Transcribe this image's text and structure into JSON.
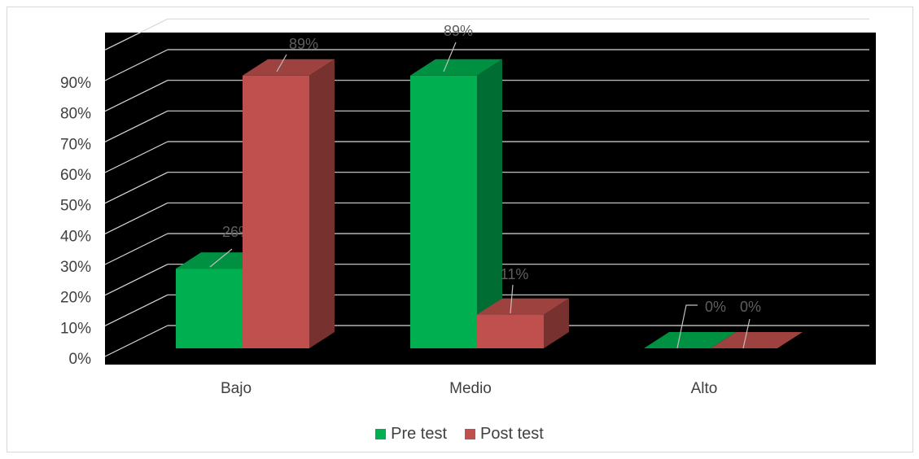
{
  "chart_data": {
    "type": "bar",
    "categories": [
      "Bajo",
      "Medio",
      "Alto"
    ],
    "series": [
      {
        "name": "Pre test",
        "values": [
          26,
          89,
          0
        ],
        "labels": [
          "26%",
          "89%",
          "0%"
        ],
        "color": "#00b050"
      },
      {
        "name": "Post test",
        "values": [
          89,
          11,
          0
        ],
        "labels": [
          "89%",
          "11%",
          "0%"
        ],
        "color": "#c0504d"
      }
    ],
    "y_ticks": [
      "0%",
      "10%",
      "20%",
      "30%",
      "40%",
      "50%",
      "60%",
      "70%",
      "80%",
      "90%"
    ],
    "ylim": [
      0,
      100
    ],
    "grid": true,
    "legend_position": "bottom",
    "background": "#000000",
    "title": "",
    "xlabel": "",
    "ylabel": ""
  }
}
